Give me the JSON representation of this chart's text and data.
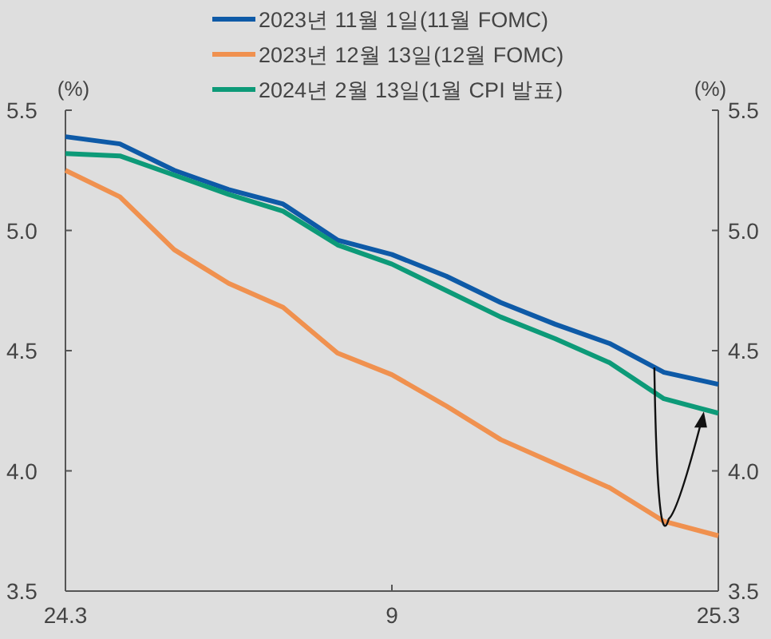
{
  "chart_data": {
    "type": "line",
    "categories": [
      "24.3",
      null,
      null,
      null,
      null,
      null,
      "9",
      null,
      null,
      null,
      null,
      null,
      "25.3"
    ],
    "series": [
      {
        "name": "2023년 11월 1일(11월 FOMC)",
        "color": "#0e5aa7",
        "values": [
          5.39,
          5.36,
          5.25,
          5.17,
          5.11,
          4.96,
          4.9,
          4.81,
          4.7,
          4.61,
          4.53,
          4.41,
          4.36
        ]
      },
      {
        "name": "2023년 12월 13일(12월 FOMC)",
        "color": "#f0914f",
        "values": [
          5.25,
          5.14,
          4.92,
          4.78,
          4.68,
          4.49,
          4.4,
          4.27,
          4.13,
          4.03,
          3.93,
          3.79,
          3.73
        ]
      },
      {
        "name": "2024년 2월 13일(1월 CPI 발표)",
        "color": "#0d9a78",
        "values": [
          5.32,
          5.31,
          5.23,
          5.15,
          5.08,
          4.94,
          4.86,
          4.75,
          4.64,
          4.55,
          4.45,
          4.3,
          4.24
        ]
      }
    ],
    "ylabel": "(%)",
    "y2label": "(%)",
    "ylim": [
      3.5,
      5.5
    ],
    "yticks": [
      {
        "value": 3.5,
        "label": "3.5"
      },
      {
        "value": 4,
        "label": "4.0"
      },
      {
        "value": 4.5,
        "label": "4.5"
      },
      {
        "value": 5,
        "label": "5.0"
      },
      {
        "value": 5.5,
        "label": "5.5"
      }
    ],
    "y2lim": [
      3.5,
      5.5
    ],
    "y2ticks": [
      {
        "value": 3.5,
        "label": "3.5"
      },
      {
        "value": 4,
        "label": "4.0"
      },
      {
        "value": 4.5,
        "label": "4.5"
      },
      {
        "value": 5,
        "label": "5.0"
      },
      {
        "value": 5.5,
        "label": "5.5"
      }
    ],
    "legend": "top",
    "grid": false,
    "marker": "none",
    "line_style": "solid"
  }
}
